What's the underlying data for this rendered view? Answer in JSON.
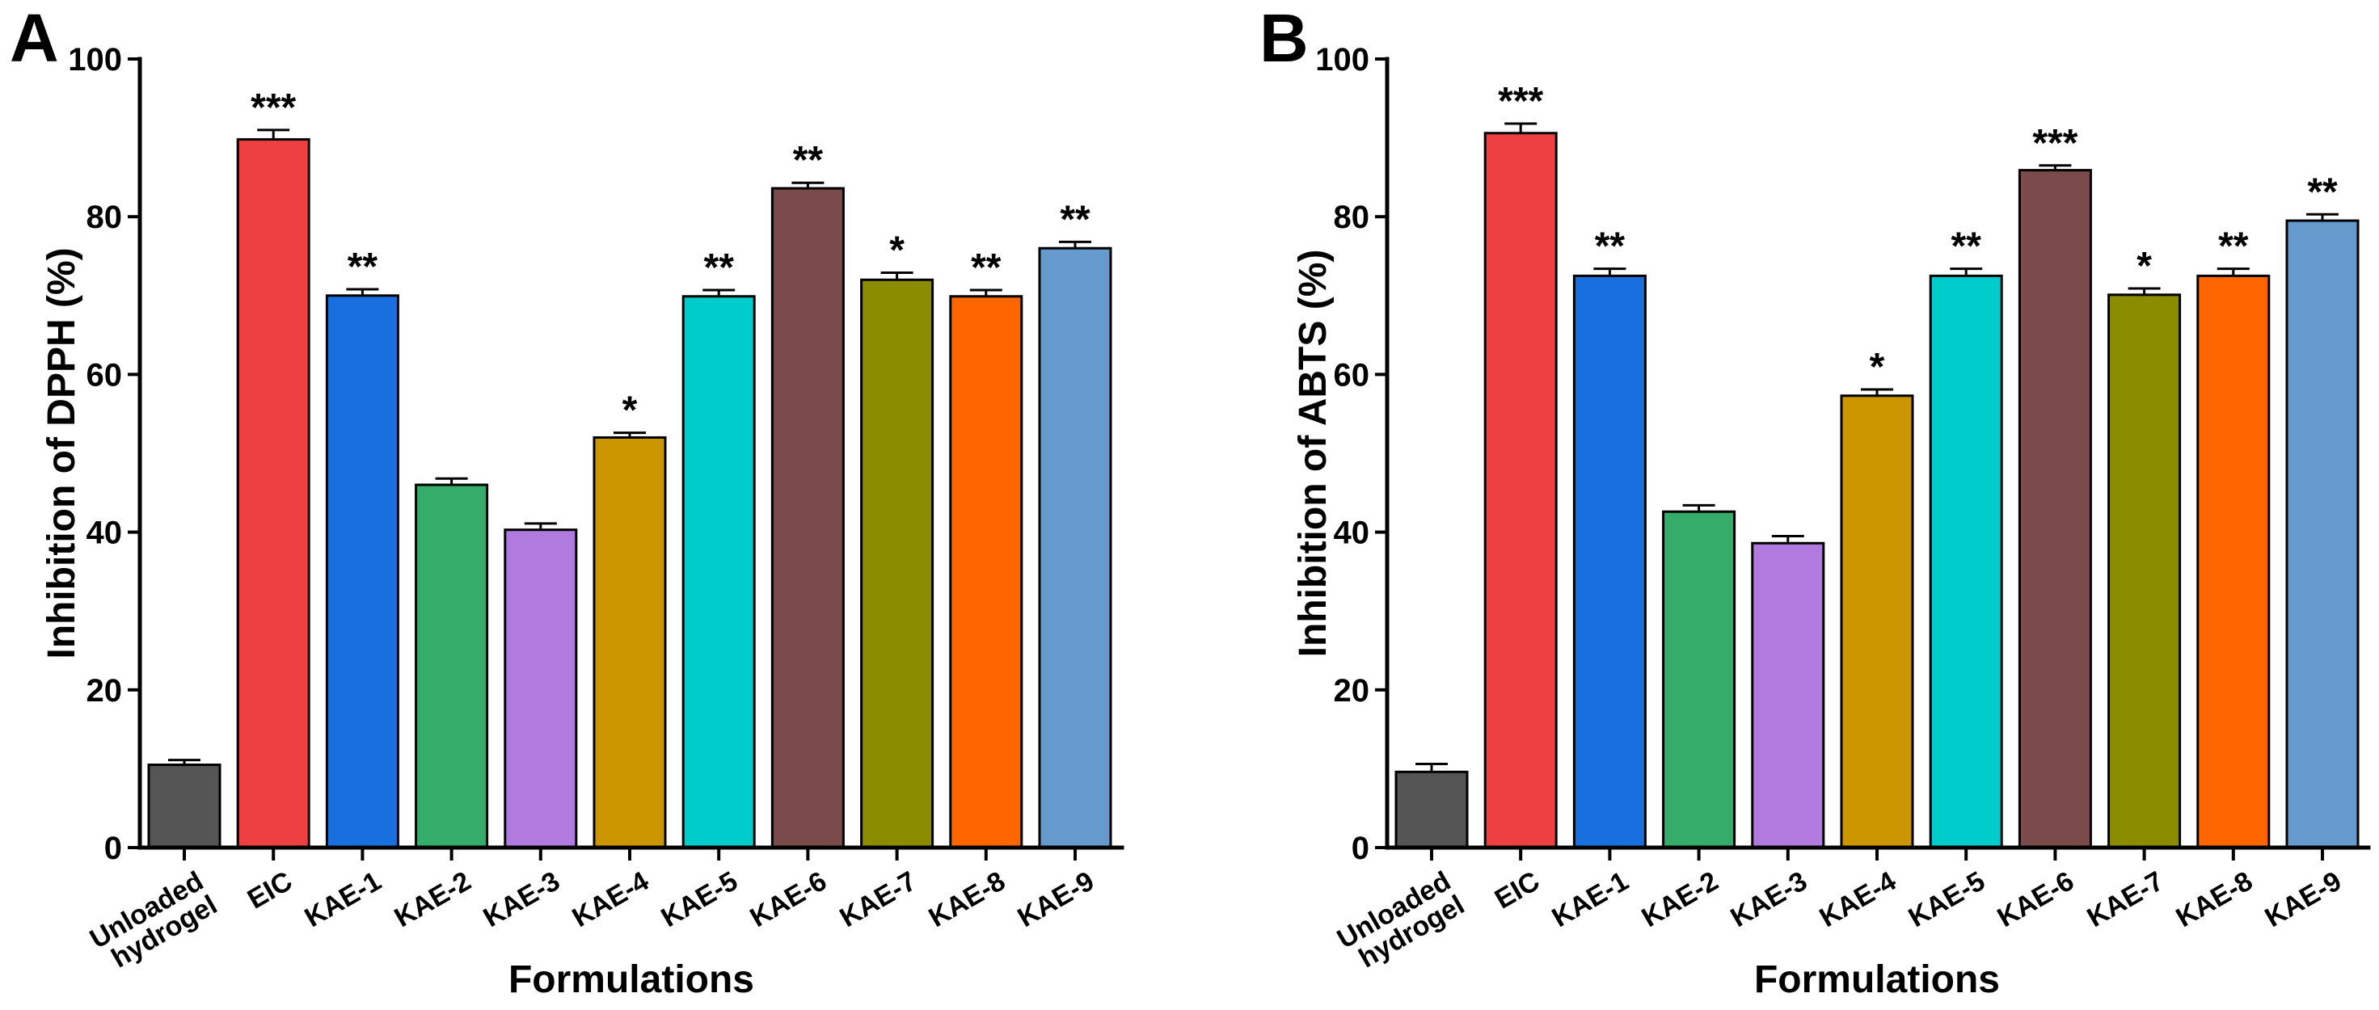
{
  "chart_data": [
    {
      "type": "bar",
      "panel": "A",
      "xlabel": "Formulations",
      "ylabel": "Inhibition of DPPH (%)",
      "ylim": [
        0,
        100
      ],
      "yticks": [
        0,
        20,
        40,
        60,
        80,
        100
      ],
      "categories": [
        "Unloaded hydrogel",
        "EIC",
        "KAE-1",
        "KAE-2",
        "KAE-3",
        "KAE-4",
        "KAE-5",
        "KAE-6",
        "KAE-7",
        "KAE-8",
        "KAE-9"
      ],
      "values": [
        10.5,
        89.8,
        70.0,
        46.0,
        40.3,
        52.0,
        69.9,
        83.6,
        72.0,
        69.9,
        76.0
      ],
      "errors": [
        0.6,
        1.2,
        0.8,
        0.8,
        0.8,
        0.6,
        0.8,
        0.7,
        0.9,
        0.8,
        0.8
      ],
      "significance": [
        "",
        "***",
        "**",
        "",
        "",
        "*",
        "**",
        "**",
        "*",
        "**",
        "**"
      ],
      "colors": [
        "#555555",
        "#EE4040",
        "#1A6FDF",
        "#35AC6A",
        "#B07ADF",
        "#CC9600",
        "#00CCCC",
        "#7B4B4B",
        "#8C8C00",
        "#FF6600",
        "#6699CC"
      ],
      "grid": false
    },
    {
      "type": "bar",
      "panel": "B",
      "xlabel": "Formulations",
      "ylabel": "Inhibition of ABTS (%)",
      "ylim": [
        0,
        100
      ],
      "yticks": [
        0,
        20,
        40,
        60,
        80,
        100
      ],
      "categories": [
        "Unloaded hydrogel",
        "EIC",
        "KAE-1",
        "KAE-2",
        "KAE-3",
        "KAE-4",
        "KAE-5",
        "KAE-6",
        "KAE-7",
        "KAE-8",
        "KAE-9"
      ],
      "values": [
        9.6,
        90.6,
        72.5,
        42.6,
        38.6,
        57.3,
        72.5,
        85.9,
        70.1,
        72.5,
        79.5
      ],
      "errors": [
        1.0,
        1.2,
        0.9,
        0.8,
        0.9,
        0.8,
        0.9,
        0.6,
        0.8,
        0.9,
        0.8
      ],
      "significance": [
        "",
        "***",
        "**",
        "",
        "",
        "*",
        "**",
        "***",
        "*",
        "**",
        "**"
      ],
      "colors": [
        "#555555",
        "#EE4040",
        "#1A6FDF",
        "#35AC6A",
        "#B07ADF",
        "#CC9600",
        "#00CCCC",
        "#7B4B4B",
        "#8C8C00",
        "#FF6600",
        "#6699CC"
      ],
      "grid": false
    }
  ]
}
